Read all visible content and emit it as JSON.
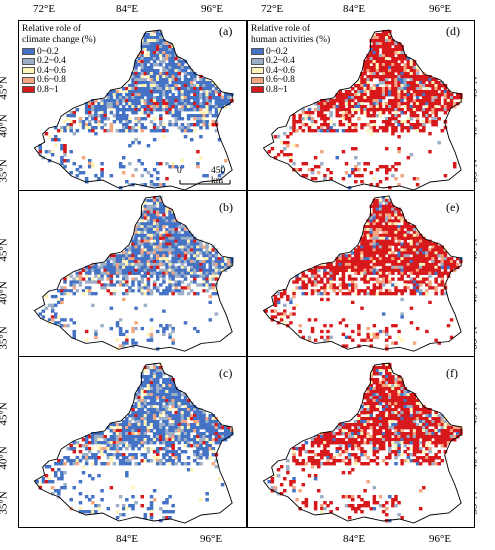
{
  "top_lon_labels_left": [
    "72°E",
    "84°E",
    "96°E"
  ],
  "top_lon_labels_right": [
    "72°E",
    "84°E",
    "96°E"
  ],
  "bottom_lon_labels_left": [
    "84°E",
    "96°E"
  ],
  "bottom_lon_labels_right": [
    "84°E",
    "96°E"
  ],
  "lat_labels": [
    "45°N",
    "40°N",
    "35°N"
  ],
  "panels": [
    {
      "id": "a",
      "label": "(a)",
      "theme": "climate"
    },
    {
      "id": "b",
      "label": "(b)",
      "theme": "climate"
    },
    {
      "id": "c",
      "label": "(c)",
      "theme": "climate"
    },
    {
      "id": "d",
      "label": "(d)",
      "theme": "human"
    },
    {
      "id": "e",
      "label": "(e)",
      "theme": "human"
    },
    {
      "id": "f",
      "label": "(f)",
      "theme": "human"
    }
  ],
  "legend_climate": {
    "title_line1": "Relative role of",
    "title_line2": "climate change (%)",
    "classes": [
      "0~0.2",
      "0.2~0.4",
      "0.4~0.6",
      "0.6~0.8",
      "0.8~1"
    ]
  },
  "legend_human": {
    "title_line1": "Relative role of",
    "title_line2": "human activities (%)",
    "classes": [
      "0~0.2",
      "0.2~0.4",
      "0.4~0.6",
      "0.6~0.8",
      "0.8~1"
    ]
  },
  "class_colors": [
    "#4472c4",
    "#9dafc6",
    "#fff4b8",
    "#f4a582",
    "#d7191c"
  ],
  "scale_bar": {
    "start": "0",
    "end": "450 km"
  }
}
